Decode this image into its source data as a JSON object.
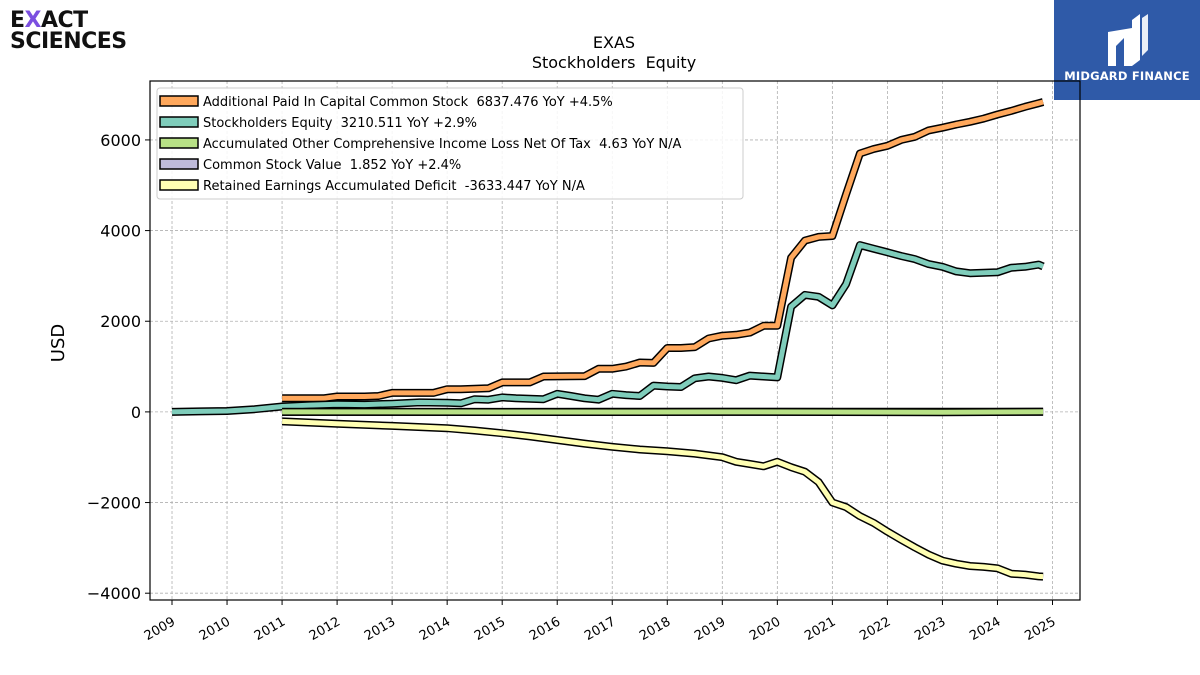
{
  "logos": {
    "left_line1": "EXACT",
    "left_line2": "SCIENCES",
    "right_text": "MIDGARD FINANCE"
  },
  "chart_data": {
    "type": "line",
    "title": "EXAS",
    "subtitle": "Stockholders  Equity",
    "xlabel": "",
    "ylabel": "USD",
    "xlim": [
      2008.6,
      2025.5
    ],
    "ylim": [
      -4150,
      7300
    ],
    "yticks": [
      -4000,
      -2000,
      0,
      2000,
      4000,
      6000
    ],
    "xticks": [
      "2009",
      "2010",
      "2011",
      "2012",
      "2013",
      "2014",
      "2015",
      "2016",
      "2017",
      "2018",
      "2019",
      "2020",
      "2021",
      "2022",
      "2023",
      "2024",
      "2025"
    ],
    "grid": true,
    "legend_position": "top-left",
    "series": [
      {
        "name": "Additional Paid In Capital Common Stock  6837.476 YoY +4.5%",
        "color": "#ffa85c",
        "x": [
          2011.0,
          2011.75,
          2012.0,
          2012.5,
          2012.75,
          2013.0,
          2013.5,
          2013.75,
          2014.0,
          2014.25,
          2014.5,
          2014.75,
          2015.0,
          2015.5,
          2015.75,
          2016.5,
          2016.75,
          2017.0,
          2017.25,
          2017.5,
          2017.75,
          2018.0,
          2018.25,
          2018.5,
          2018.75,
          2019.0,
          2019.25,
          2019.5,
          2019.75,
          2020.0,
          2020.25,
          2020.5,
          2020.75,
          2021.0,
          2021.25,
          2021.5,
          2021.75,
          2022.0,
          2022.25,
          2022.5,
          2022.75,
          2023.0,
          2023.25,
          2023.5,
          2023.75,
          2024.0,
          2024.25,
          2024.5,
          2024.75,
          2024.83
        ],
        "values": [
          300,
          300,
          340,
          340,
          350,
          420,
          420,
          420,
          500,
          500,
          510,
          520,
          650,
          650,
          780,
          790,
          950,
          950,
          1000,
          1090,
          1080,
          1410,
          1410,
          1430,
          1620,
          1680,
          1700,
          1750,
          1900,
          1900,
          3400,
          3780,
          3860,
          3880,
          4800,
          5700,
          5800,
          5870,
          6000,
          6070,
          6210,
          6270,
          6340,
          6400,
          6470,
          6560,
          6640,
          6730,
          6810,
          6837.476
        ]
      },
      {
        "name": "Stockholders Equity  3210.511 YoY +2.9%",
        "color": "#7fcdbb",
        "x": [
          2009.0,
          2009.5,
          2010.0,
          2010.5,
          2011.0,
          2011.5,
          2012.0,
          2012.5,
          2013.0,
          2013.5,
          2014.0,
          2014.25,
          2014.5,
          2014.75,
          2015.0,
          2015.25,
          2015.5,
          2015.75,
          2016.0,
          2016.25,
          2016.5,
          2016.75,
          2017.0,
          2017.25,
          2017.5,
          2017.75,
          2018.0,
          2018.25,
          2018.5,
          2018.75,
          2019.0,
          2019.25,
          2019.5,
          2019.75,
          2020.0,
          2020.25,
          2020.5,
          2020.75,
          2021.0,
          2021.25,
          2021.5,
          2021.75,
          2022.0,
          2022.25,
          2022.5,
          2022.75,
          2023.0,
          2023.25,
          2023.5,
          2023.75,
          2024.0,
          2024.25,
          2024.5,
          2024.75,
          2024.83
        ],
        "values": [
          0,
          10,
          20,
          60,
          120,
          150,
          170,
          160,
          180,
          210,
          200,
          190,
          280,
          270,
          320,
          300,
          290,
          280,
          400,
          350,
          300,
          270,
          400,
          370,
          350,
          580,
          560,
          550,
          740,
          780,
          750,
          700,
          800,
          780,
          760,
          2320,
          2580,
          2540,
          2350,
          2820,
          3680,
          3600,
          3520,
          3440,
          3370,
          3260,
          3200,
          3100,
          3060,
          3070,
          3080,
          3180,
          3200,
          3250,
          3210.511
        ]
      },
      {
        "name": "Accumulated Other Comprehensive Income Loss Net Of Tax  4.63 YoY N/A",
        "color": "#b8e186",
        "x": [
          2011.0,
          2013.0,
          2015.0,
          2017.0,
          2019.0,
          2021.0,
          2023.0,
          2024.83
        ],
        "values": [
          0,
          0,
          -2,
          -3,
          -1,
          -2,
          -6,
          4.63
        ]
      },
      {
        "name": "Common Stock Value  1.852 YoY +2.4%",
        "color": "#bebada",
        "x": [
          2011.0,
          2013.0,
          2015.0,
          2017.0,
          2019.0,
          2021.0,
          2023.0,
          2024.83
        ],
        "values": [
          0.7,
          0.8,
          0.9,
          1.1,
          1.4,
          1.7,
          1.8,
          1.852
        ]
      },
      {
        "name": "Retained Earnings Accumulated Deficit  -3633.447 YoY N/A",
        "color": "#ffffb3",
        "x": [
          2011.0,
          2012.0,
          2013.0,
          2014.0,
          2014.5,
          2015.0,
          2015.5,
          2016.0,
          2016.5,
          2017.0,
          2017.5,
          2018.0,
          2018.5,
          2019.0,
          2019.25,
          2019.5,
          2019.75,
          2020.0,
          2020.25,
          2020.5,
          2020.75,
          2021.0,
          2021.25,
          2021.5,
          2021.75,
          2022.0,
          2022.25,
          2022.5,
          2022.75,
          2023.0,
          2023.25,
          2023.5,
          2023.75,
          2024.0,
          2024.25,
          2024.5,
          2024.75,
          2024.83
        ],
        "values": [
          -210,
          -260,
          -310,
          -360,
          -410,
          -470,
          -540,
          -620,
          -700,
          -770,
          -830,
          -870,
          -920,
          -1000,
          -1100,
          -1150,
          -1200,
          -1100,
          -1220,
          -1320,
          -1550,
          -2000,
          -2100,
          -2300,
          -2450,
          -2640,
          -2820,
          -2990,
          -3150,
          -3280,
          -3350,
          -3400,
          -3420,
          -3450,
          -3570,
          -3590,
          -3630,
          -3633.447
        ]
      }
    ]
  }
}
